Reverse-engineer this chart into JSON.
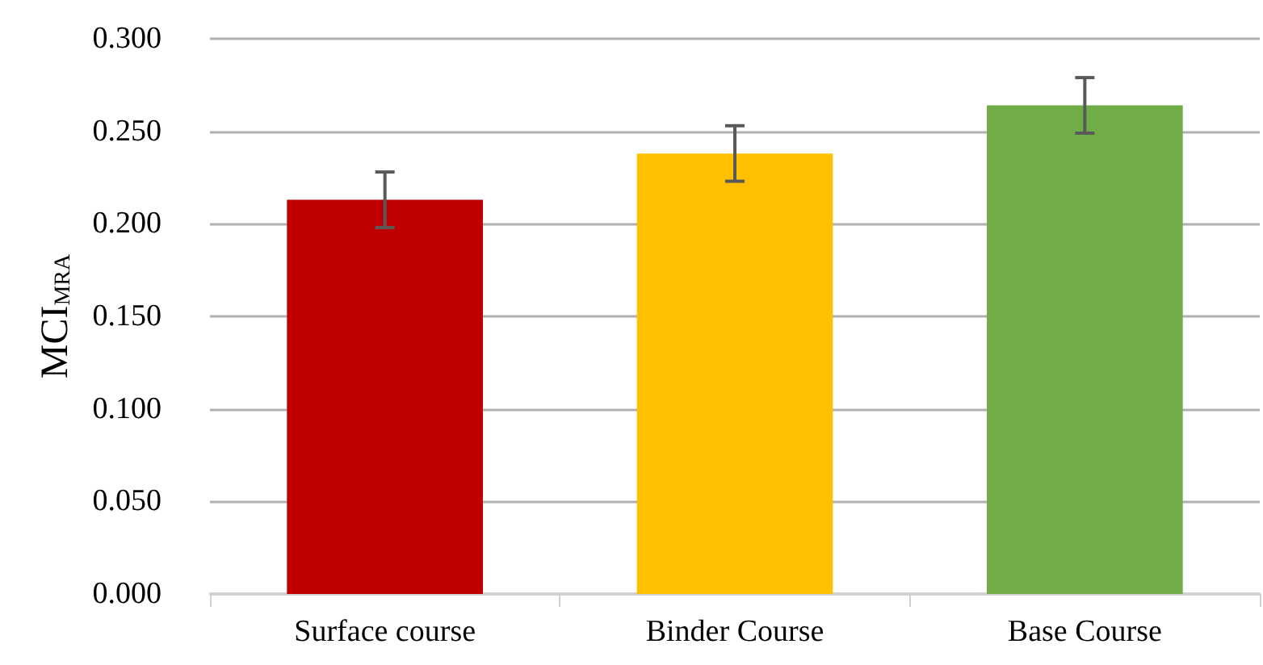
{
  "chart_data": {
    "type": "bar",
    "ylabel": "MCI$_{MRA}$",
    "categories": [
      "Surface course",
      "Binder Course",
      "Base Course"
    ],
    "values": [
      0.213,
      0.238,
      0.264
    ],
    "colors": [
      "#c00000",
      "#ffc000",
      "#70ad47"
    ],
    "errors": [
      0.015,
      0.015,
      0.015
    ],
    "ylim": [
      0,
      0.3
    ],
    "yticks": [
      {
        "value": 0,
        "label": "0.000"
      },
      {
        "value": 0.05,
        "label": "0.050"
      },
      {
        "value": 0.1,
        "label": "0.100"
      },
      {
        "value": 0.15,
        "label": "0.150"
      },
      {
        "value": 0.2,
        "label": "0.200"
      },
      {
        "value": 0.25,
        "label": "0.250"
      },
      {
        "value": 0.3,
        "label": "0.300"
      }
    ],
    "grid": "y"
  }
}
